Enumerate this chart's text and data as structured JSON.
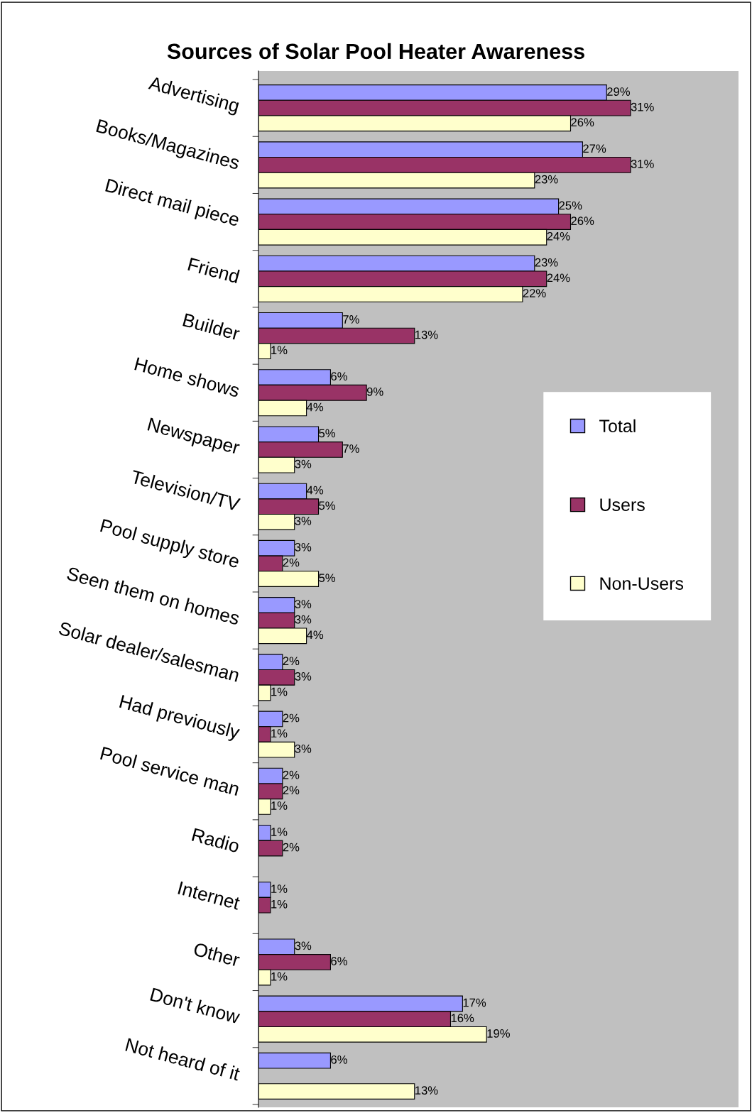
{
  "chart_data": {
    "type": "bar",
    "orientation": "horizontal",
    "title": "Sources of Solar Pool Heater Awareness",
    "categories": [
      "Advertising",
      "Books/Magazines",
      "Direct mail piece",
      "Friend",
      "Builder",
      "Home shows",
      "Newspaper",
      "Television/TV",
      "Pool supply store",
      "Seen them on homes",
      "Solar dealer/salesman",
      "Had previously",
      "Pool service man",
      "Radio",
      "Internet",
      "Other",
      "Don't know",
      "Not heard of it"
    ],
    "series": [
      {
        "name": "Total",
        "color": "#9999ff",
        "values": [
          29,
          27,
          25,
          23,
          7,
          6,
          5,
          4,
          3,
          3,
          2,
          2,
          2,
          1,
          1,
          3,
          17,
          6
        ],
        "value_labels": [
          "29%",
          "27%",
          "25%",
          "23%",
          "7%",
          "6%",
          "5%",
          "4%",
          "3%",
          "3%",
          "2%",
          "2%",
          "2%",
          "1%",
          "1%",
          "3%",
          "17%",
          "6%"
        ]
      },
      {
        "name": "Users",
        "color": "#993366",
        "values": [
          31,
          31,
          26,
          24,
          13,
          9,
          7,
          5,
          2,
          3,
          3,
          1,
          2,
          2,
          1,
          6,
          16,
          null
        ],
        "value_labels": [
          "31%",
          "31%",
          "26%",
          "24%",
          "13%",
          "9%",
          "7%",
          "5%",
          "2%",
          "3%",
          "3%",
          "1%",
          "2%",
          "2%",
          "1%",
          "6%",
          "16%",
          null
        ]
      },
      {
        "name": "Non-Users",
        "color": "#ffffcc",
        "values": [
          26,
          23,
          24,
          22,
          1,
          4,
          3,
          3,
          5,
          4,
          1,
          3,
          1,
          null,
          null,
          1,
          19,
          13
        ],
        "value_labels": [
          "26%",
          "23%",
          "24%",
          "22%",
          "1%",
          "4%",
          "3%",
          "3%",
          "5%",
          "4%",
          "1%",
          "3%",
          "1%",
          null,
          null,
          "1%",
          "19%",
          "13%"
        ]
      }
    ],
    "legend": "right",
    "grid": false
  }
}
